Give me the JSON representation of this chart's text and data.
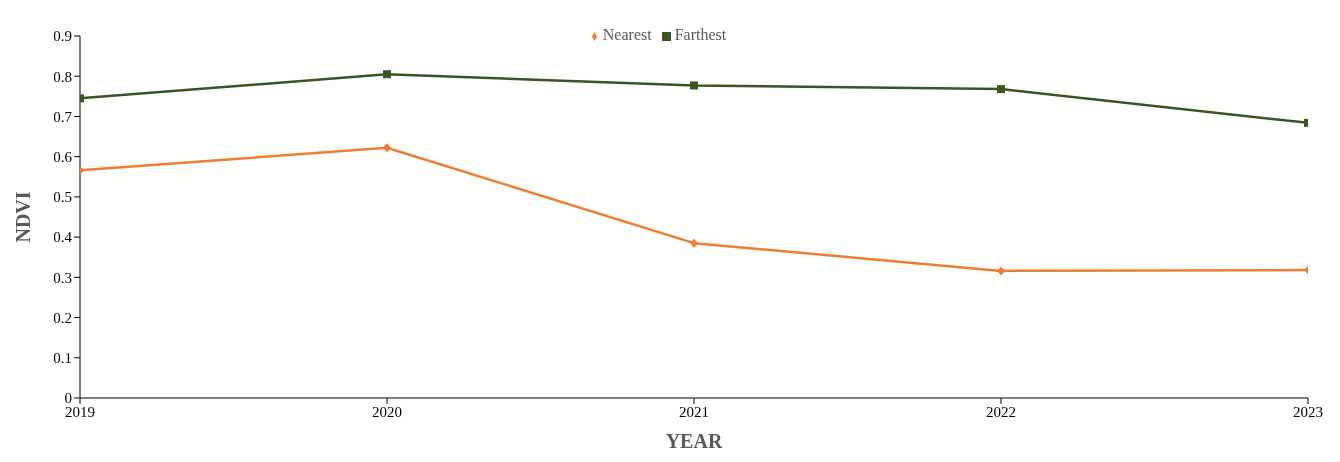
{
  "chart_data": {
    "type": "line",
    "xlabel": "YEAR",
    "ylabel": "NDVI",
    "x": [
      2019,
      2020,
      2021,
      2022,
      2023
    ],
    "xlim": [
      2019,
      2023
    ],
    "xticks": [
      2019,
      2020,
      2021,
      2022,
      2023
    ],
    "ylim": [
      0,
      0.9
    ],
    "yticks": [
      0,
      0.1,
      0.2,
      0.3,
      0.4,
      0.5,
      0.6,
      0.7,
      0.8,
      0.9
    ],
    "grid": false,
    "legend": "top",
    "line_style": "solid",
    "series": [
      {
        "name": "Nearest",
        "color": "#ed7d31",
        "marker": "diamond",
        "values": [
          0.566,
          0.622,
          0.385,
          0.316,
          0.318
        ]
      },
      {
        "name": "Farthest",
        "color": "#375623",
        "marker": "square",
        "values": [
          0.745,
          0.805,
          0.777,
          0.768,
          0.684
        ]
      }
    ]
  }
}
